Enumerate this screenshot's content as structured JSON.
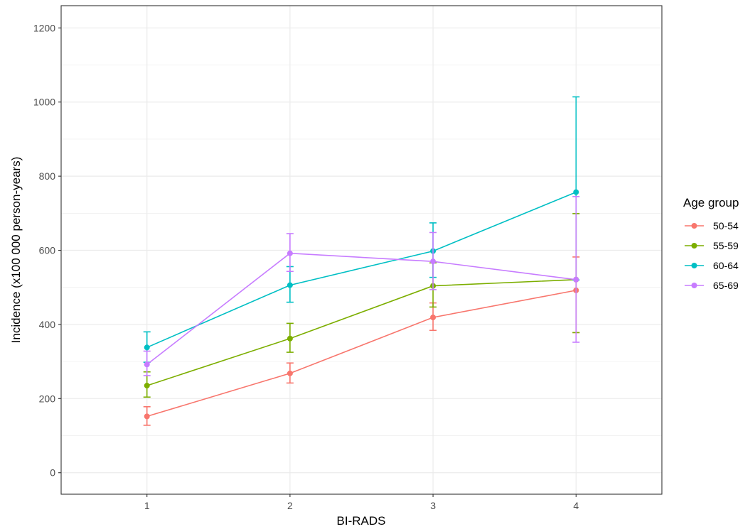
{
  "chart_data": {
    "type": "line",
    "xlabel": "BI-RADS",
    "ylabel": "Incidence (x100 000 person-years)",
    "x": [
      1,
      2,
      3,
      4
    ],
    "x_tick_labels": [
      "1",
      "2",
      "3",
      "4"
    ],
    "xlim": [
      0.4,
      4.6
    ],
    "ylim": [
      -58,
      1260
    ],
    "y_ticks": [
      0,
      200,
      400,
      600,
      800,
      1000,
      1200
    ],
    "y_tick_labels": [
      "0",
      "200",
      "400",
      "600",
      "800",
      "1000",
      "1200"
    ],
    "grid": true,
    "legend": {
      "title": "Age group",
      "position": "right"
    },
    "series": [
      {
        "name": "50-54",
        "color": "#F8766D",
        "values": [
          152,
          268,
          419,
          492
        ],
        "lower": [
          128,
          242,
          384,
          378
        ],
        "upper": [
          178,
          296,
          458,
          582
        ]
      },
      {
        "name": "55-59",
        "color": "#7CAE00",
        "values": [
          235,
          362,
          504,
          521
        ],
        "lower": [
          204,
          325,
          447,
          378
        ],
        "upper": [
          272,
          403,
          566,
          699
        ]
      },
      {
        "name": "60-64",
        "color": "#00BFC4",
        "values": [
          338,
          506,
          598,
          757
        ],
        "lower": [
          298,
          460,
          527,
          520
        ],
        "upper": [
          380,
          556,
          674,
          1014
        ]
      },
      {
        "name": "65-69",
        "color": "#C77CFF",
        "values": [
          292,
          592,
          570,
          521
        ],
        "lower": [
          262,
          543,
          494,
          352
        ],
        "upper": [
          328,
          645,
          648,
          745
        ]
      }
    ]
  }
}
